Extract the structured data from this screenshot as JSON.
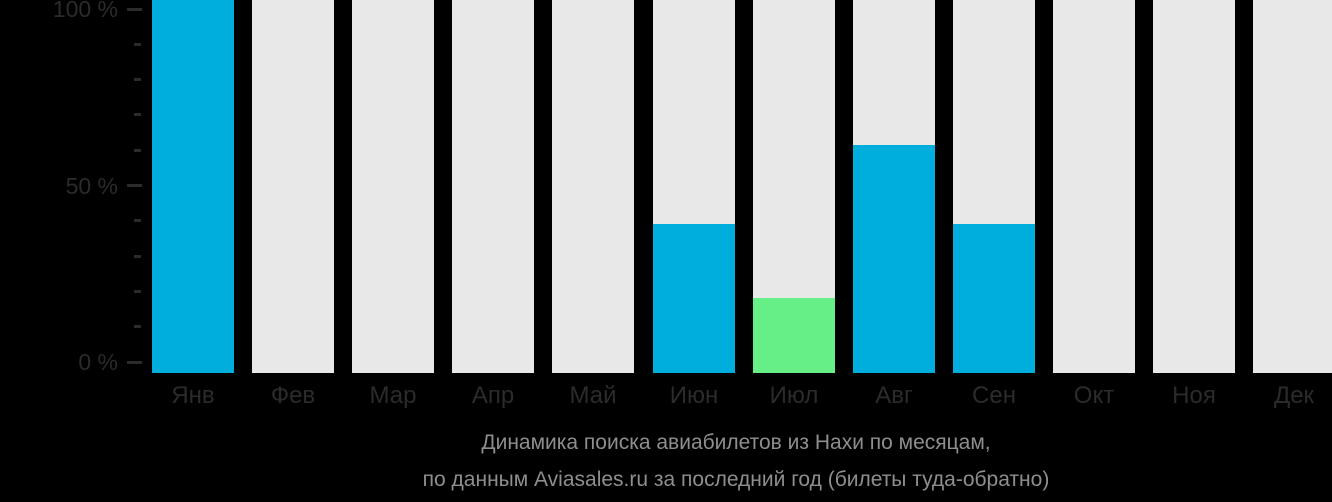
{
  "chart_data": {
    "type": "bar",
    "title": "Динамика поиска авиабилетов из Нахи по месяцам,",
    "subtitle": "по данным Aviasales.ru за последний год (билеты туда-обратно)",
    "categories": [
      "Янв",
      "Фев",
      "Мар",
      "Апр",
      "Май",
      "Июн",
      "Июл",
      "Авг",
      "Сен",
      "Окт",
      "Ноя",
      "Дек"
    ],
    "values": [
      100,
      0,
      0,
      0,
      0,
      40,
      20,
      61,
      40,
      0,
      0,
      0
    ],
    "unit": "%",
    "bar_color_keys": [
      "bar_default",
      null,
      null,
      null,
      null,
      "bar_default",
      "bar_highlight",
      "bar_default",
      "bar_default",
      null,
      null,
      null
    ],
    "y_ticks": [
      {
        "label": "100 %",
        "value": 100
      },
      {
        "label": "50 %",
        "value": 50
      },
      {
        "label": "0 %",
        "value": 0
      }
    ],
    "minor_tick_step": 10,
    "ylim": [
      0,
      100
    ],
    "grid": false,
    "legend": "none",
    "background_track_bars": true,
    "colors": {
      "bar_default": "#00aedd",
      "bar_highlight": "#66ee87",
      "bar_track": "#e8e8e8",
      "background": "#000000",
      "axis_text": "#2b2b2b",
      "caption_text": "#8e8e8e"
    }
  }
}
